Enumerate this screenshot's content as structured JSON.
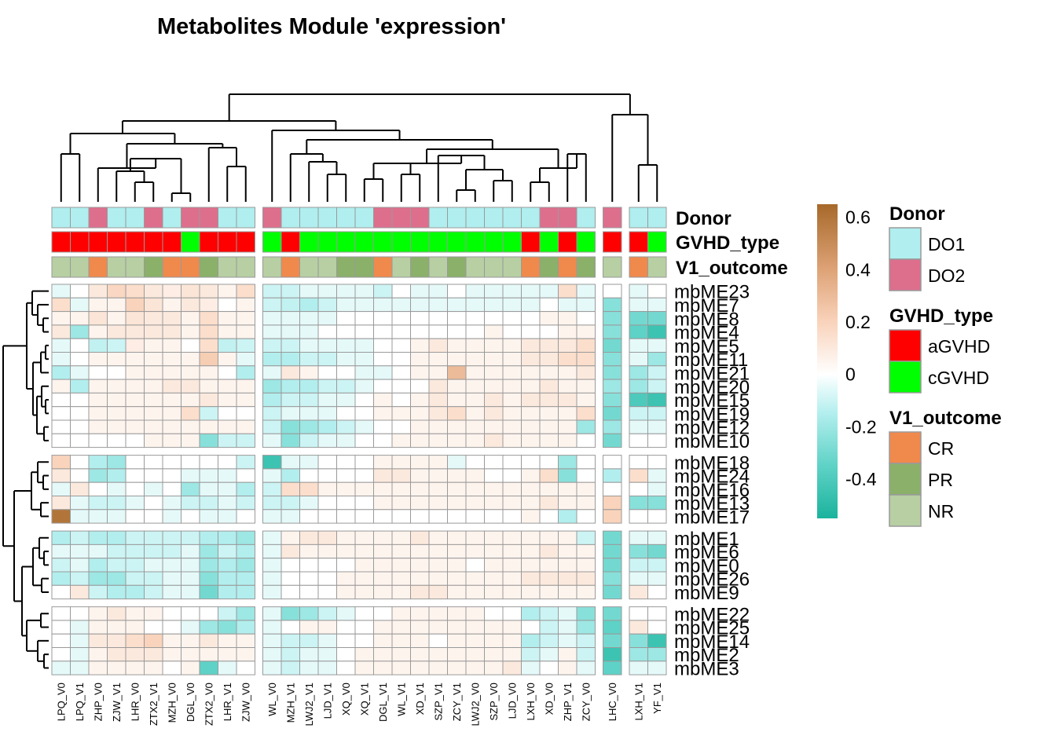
{
  "chart_data": {
    "type": "heatmap",
    "title": "Metabolites Module 'expression'",
    "columns": [
      "LPQ_V0",
      "LPQ_V1",
      "ZHP_V0",
      "ZJW_V1",
      "LHR_V0",
      "ZTX2_V1",
      "MZH_V0",
      "DGL_V0",
      "ZTX2_V0",
      "LHR_V1",
      "ZJW_V0",
      "WL_V0",
      "MZH_V1",
      "LWJ2_V1",
      "LJD_V1",
      "XQ_V0",
      "XQ_V1",
      "DGL_V1",
      "WL_V1",
      "XD_V1",
      "SZP_V1",
      "ZCY_V1",
      "LWJ2_V0",
      "SZP_V0",
      "LJD_V0",
      "LXH_V0",
      "XD_V0",
      "ZHP_V1",
      "ZCY_V0",
      "LHC_V0",
      "LXH_V1",
      "YF_V1"
    ],
    "column_groups": [
      11,
      18,
      1,
      2
    ],
    "rows": [
      "mbME23",
      "mbME7",
      "mbME8",
      "mbME4",
      "mbME5",
      "mbME11",
      "mbME21",
      "mbME20",
      "mbME15",
      "mbME19",
      "mbME12",
      "mbME10",
      "mbME18",
      "mbME24",
      "mbME16",
      "mbME13",
      "mbME17",
      "mbME1",
      "mbME6",
      "mbME0",
      "mbME26",
      "mbME9",
      "mbME22",
      "mbME25",
      "mbME14",
      "mbME2",
      "mbME3"
    ],
    "row_groups": [
      12,
      5,
      5,
      5
    ],
    "annotations": {
      "Donor": [
        "DO1",
        "DO1",
        "DO2",
        "DO1",
        "DO1",
        "DO2",
        "DO1",
        "DO2",
        "DO2",
        "DO1",
        "DO1",
        "DO2",
        "DO1",
        "DO1",
        "DO1",
        "DO1",
        "DO1",
        "DO2",
        "DO2",
        "DO2",
        "DO1",
        "DO1",
        "DO1",
        "DO1",
        "DO1",
        "DO1",
        "DO2",
        "DO2",
        "DO1",
        "DO2",
        "DO1",
        "DO1"
      ],
      "GVHD_type": [
        "aGVHD",
        "aGVHD",
        "aGVHD",
        "aGVHD",
        "aGVHD",
        "aGVHD",
        "aGVHD",
        "cGVHD",
        "aGVHD",
        "aGVHD",
        "aGVHD",
        "cGVHD",
        "aGVHD",
        "cGVHD",
        "cGVHD",
        "cGVHD",
        "cGVHD",
        "cGVHD",
        "cGVHD",
        "cGVHD",
        "cGVHD",
        "cGVHD",
        "cGVHD",
        "cGVHD",
        "cGVHD",
        "aGVHD",
        "cGVHD",
        "aGVHD",
        "cGVHD",
        "aGVHD",
        "aGVHD",
        "cGVHD"
      ],
      "V1_outcome": [
        "NR",
        "NR",
        "CR",
        "NR",
        "NR",
        "PR",
        "CR",
        "CR",
        "PR",
        "NR",
        "NR",
        "NR",
        "CR",
        "NR",
        "NR",
        "PR",
        "PR",
        "CR",
        "NR",
        "PR",
        "NR",
        "PR",
        "NR",
        "NR",
        "NR",
        "CR",
        "PR",
        "CR",
        "PR",
        "NR",
        "CR",
        "NR"
      ]
    },
    "values": [
      [
        -0.05,
        0.0,
        0.1,
        0.18,
        0.15,
        0.1,
        0.08,
        0.12,
        0.1,
        0.05,
        0.15,
        -0.1,
        -0.1,
        -0.05,
        -0.05,
        -0.05,
        -0.05,
        -0.1,
        0.0,
        -0.05,
        -0.05,
        0.0,
        -0.05,
        -0.05,
        -0.05,
        -0.05,
        -0.05,
        0.15,
        -0.05,
        0.0,
        -0.05,
        0.0
      ],
      [
        0.15,
        -0.05,
        0.05,
        0.05,
        0.2,
        0.12,
        0.05,
        0.1,
        0.08,
        0.0,
        0.05,
        -0.1,
        -0.12,
        -0.15,
        -0.1,
        -0.05,
        -0.05,
        -0.05,
        -0.05,
        -0.05,
        -0.05,
        -0.05,
        -0.05,
        -0.05,
        -0.05,
        -0.05,
        0.0,
        -0.05,
        -0.05,
        -0.25,
        -0.05,
        -0.05
      ],
      [
        0.05,
        0.05,
        0.12,
        0.05,
        0.12,
        0.1,
        0.1,
        0.05,
        0.15,
        0.05,
        0.05,
        -0.05,
        -0.05,
        -0.05,
        -0.05,
        0.0,
        0.0,
        0.0,
        0.0,
        0.0,
        0.0,
        0.0,
        0.0,
        0.0,
        0.0,
        0.0,
        0.05,
        0.05,
        0.0,
        -0.25,
        -0.3,
        -0.3
      ],
      [
        0.1,
        -0.2,
        0.05,
        0.1,
        0.1,
        0.1,
        0.1,
        0.05,
        0.15,
        0.05,
        0.05,
        -0.05,
        -0.05,
        -0.05,
        0.0,
        0.0,
        0.0,
        0.0,
        0.0,
        0.0,
        0.0,
        0.0,
        0.0,
        0.05,
        0.0,
        0.0,
        0.0,
        0.05,
        0.05,
        -0.25,
        -0.35,
        -0.45
      ],
      [
        -0.05,
        0.0,
        -0.12,
        -0.1,
        0.08,
        0.05,
        0.05,
        0.0,
        0.15,
        -0.12,
        -0.1,
        -0.1,
        -0.1,
        -0.05,
        -0.05,
        -0.05,
        -0.05,
        0.0,
        0.0,
        0.05,
        0.1,
        0.05,
        0.05,
        0.05,
        0.05,
        0.1,
        0.1,
        0.1,
        0.15,
        -0.3,
        -0.05,
        -0.05
      ],
      [
        -0.05,
        0.0,
        0.05,
        0.05,
        0.05,
        0.05,
        0.05,
        0.05,
        0.22,
        0.05,
        -0.05,
        -0.15,
        -0.15,
        -0.1,
        -0.1,
        -0.05,
        -0.05,
        0.0,
        0.0,
        0.05,
        0.05,
        0.05,
        0.05,
        0.05,
        0.05,
        0.1,
        0.1,
        0.15,
        0.15,
        -0.25,
        -0.05,
        -0.2
      ],
      [
        -0.15,
        -0.05,
        0.0,
        0.0,
        0.05,
        0.05,
        0.05,
        0.05,
        0.05,
        0.0,
        -0.15,
        -0.05,
        0.1,
        0.05,
        0.0,
        0.0,
        -0.05,
        -0.05,
        0.0,
        0.05,
        0.05,
        0.3,
        0.05,
        0.05,
        0.05,
        0.05,
        0.05,
        0.05,
        0.1,
        -0.25,
        -0.2,
        -0.1
      ],
      [
        0.05,
        -0.15,
        0.05,
        0.05,
        0.05,
        0.05,
        0.1,
        0.1,
        0.05,
        0.05,
        0.05,
        -0.2,
        -0.15,
        -0.15,
        -0.1,
        -0.1,
        -0.05,
        0.0,
        0.0,
        0.0,
        0.1,
        0.05,
        0.05,
        0.05,
        0.05,
        0.05,
        0.1,
        0.05,
        0.05,
        -0.2,
        -0.2,
        -0.1
      ],
      [
        0.0,
        0.0,
        0.05,
        0.05,
        0.05,
        0.05,
        0.05,
        0.05,
        0.1,
        0.05,
        0.05,
        -0.15,
        -0.1,
        -0.1,
        -0.05,
        -0.05,
        0.0,
        0.05,
        0.0,
        0.05,
        0.1,
        0.05,
        0.05,
        0.1,
        0.05,
        0.1,
        0.1,
        0.1,
        0.05,
        -0.25,
        -0.4,
        -0.45
      ],
      [
        0.0,
        0.0,
        0.05,
        0.05,
        0.05,
        0.05,
        0.05,
        0.15,
        -0.1,
        0.0,
        0.0,
        -0.1,
        -0.05,
        -0.05,
        -0.05,
        0.0,
        0.0,
        0.05,
        0.05,
        0.05,
        0.1,
        0.15,
        0.05,
        0.1,
        0.05,
        0.05,
        0.05,
        0.05,
        0.15,
        -0.3,
        -0.1,
        -0.1
      ],
      [
        0.0,
        0.0,
        0.05,
        0.05,
        0.05,
        0.05,
        0.05,
        0.05,
        0.05,
        0.05,
        0.05,
        -0.1,
        -0.25,
        -0.2,
        -0.15,
        -0.1,
        -0.05,
        0.0,
        0.0,
        0.05,
        0.05,
        0.05,
        0.05,
        0.05,
        0.05,
        0.05,
        0.05,
        0.05,
        -0.2,
        -0.2,
        -0.05,
        -0.05
      ],
      [
        0.0,
        0.0,
        0.0,
        0.0,
        0.0,
        0.05,
        0.05,
        0.05,
        -0.25,
        -0.1,
        -0.1,
        -0.05,
        -0.25,
        -0.1,
        -0.05,
        -0.05,
        0.0,
        0.0,
        0.05,
        0.05,
        0.05,
        0.05,
        0.05,
        0.1,
        0.05,
        0.05,
        0.05,
        0.05,
        0.0,
        -0.3,
        0.0,
        0.0
      ],
      [
        0.2,
        0.0,
        -0.15,
        -0.2,
        0.0,
        0.0,
        0.0,
        0.0,
        0.0,
        0.0,
        -0.1,
        -0.45,
        -0.05,
        -0.05,
        0.0,
        0.0,
        0.0,
        0.05,
        0.05,
        0.05,
        0.05,
        -0.05,
        0.0,
        0.0,
        0.0,
        0.0,
        0.0,
        -0.2,
        0.0,
        0.0,
        0.0,
        0.0
      ],
      [
        0.1,
        0.0,
        -0.2,
        -0.15,
        0.0,
        0.0,
        0.0,
        -0.05,
        -0.05,
        -0.05,
        0.0,
        -0.05,
        -0.15,
        0.0,
        0.0,
        0.0,
        0.0,
        0.1,
        0.1,
        0.05,
        0.05,
        0.05,
        0.05,
        0.0,
        0.0,
        0.05,
        0.15,
        -0.25,
        0.0,
        -0.15,
        0.15,
        -0.05
      ],
      [
        -0.05,
        0.1,
        0.0,
        -0.05,
        0.0,
        -0.05,
        0.0,
        -0.2,
        -0.05,
        -0.05,
        -0.15,
        -0.1,
        0.15,
        0.15,
        0.05,
        0.05,
        0.05,
        0.05,
        0.05,
        0.05,
        0.05,
        0.05,
        0.05,
        0.05,
        0.05,
        0.05,
        0.05,
        0.05,
        0.05,
        0.0,
        0.0,
        -0.05
      ],
      [
        0.1,
        -0.05,
        -0.1,
        -0.1,
        -0.05,
        0.0,
        -0.05,
        -0.1,
        -0.1,
        -0.05,
        -0.1,
        -0.1,
        -0.1,
        -0.05,
        0.0,
        0.0,
        0.0,
        0.05,
        0.05,
        0.05,
        0.05,
        0.05,
        0.05,
        0.05,
        0.05,
        0.05,
        0.1,
        0.05,
        0.05,
        0.2,
        -0.25,
        -0.25
      ],
      [
        0.6,
        -0.05,
        -0.05,
        -0.05,
        0.0,
        0.0,
        -0.05,
        0.0,
        -0.05,
        -0.05,
        0.0,
        -0.05,
        -0.05,
        0.0,
        0.0,
        0.0,
        0.0,
        0.0,
        0.0,
        0.0,
        0.0,
        0.0,
        0.0,
        0.0,
        0.0,
        0.05,
        0.0,
        -0.15,
        0.0,
        0.2,
        0.0,
        0.0
      ],
      [
        -0.15,
        -0.1,
        -0.15,
        -0.15,
        -0.1,
        -0.1,
        -0.1,
        -0.1,
        -0.15,
        -0.15,
        -0.2,
        -0.05,
        0.05,
        0.1,
        0.1,
        0.05,
        0.05,
        0.05,
        0.05,
        0.1,
        0.05,
        0.05,
        0.05,
        0.05,
        0.05,
        0.05,
        0.05,
        0.05,
        -0.1,
        -0.3,
        -0.05,
        -0.05
      ],
      [
        -0.05,
        -0.05,
        -0.05,
        -0.1,
        -0.1,
        -0.1,
        -0.1,
        -0.05,
        -0.2,
        -0.1,
        -0.15,
        -0.05,
        0.1,
        0.05,
        0.05,
        0.05,
        0.05,
        0.05,
        0.05,
        0.05,
        0.05,
        0.05,
        0.05,
        0.05,
        0.05,
        0.05,
        0.1,
        0.05,
        0.05,
        -0.3,
        -0.25,
        -0.3
      ],
      [
        -0.1,
        -0.05,
        -0.15,
        -0.1,
        -0.1,
        -0.05,
        -0.05,
        -0.05,
        -0.2,
        -0.15,
        -0.2,
        -0.05,
        0.0,
        0.0,
        0.0,
        0.0,
        0.05,
        0.05,
        0.05,
        0.05,
        0.05,
        0.05,
        0.0,
        0.05,
        0.05,
        0.05,
        0.05,
        0.05,
        0.05,
        -0.3,
        -0.1,
        -0.1
      ],
      [
        -0.15,
        -0.1,
        -0.2,
        -0.2,
        -0.1,
        -0.1,
        -0.05,
        -0.05,
        -0.25,
        -0.15,
        -0.15,
        -0.05,
        0.0,
        0.0,
        0.0,
        0.05,
        0.05,
        0.05,
        0.05,
        0.05,
        0.05,
        0.05,
        0.05,
        0.05,
        0.05,
        0.1,
        0.1,
        0.1,
        0.1,
        -0.25,
        -0.05,
        -0.05
      ],
      [
        0.0,
        0.1,
        -0.1,
        -0.15,
        -0.15,
        -0.1,
        -0.05,
        -0.05,
        -0.3,
        -0.15,
        -0.15,
        -0.05,
        0.0,
        0.0,
        0.0,
        0.05,
        0.05,
        0.05,
        0.05,
        0.1,
        0.1,
        0.05,
        0.05,
        0.05,
        0.05,
        0.05,
        0.05,
        0.05,
        0.05,
        -0.3,
        0.1,
        0.0
      ],
      [
        0.0,
        0.0,
        0.05,
        0.1,
        0.05,
        0.05,
        0.0,
        0.0,
        0.0,
        -0.1,
        -0.2,
        -0.05,
        -0.25,
        -0.2,
        -0.1,
        -0.05,
        0.0,
        0.0,
        0.05,
        0.05,
        0.05,
        0.05,
        0.05,
        0.0,
        0.0,
        -0.15,
        -0.1,
        -0.05,
        -0.25,
        -0.3,
        0.0,
        0.0
      ],
      [
        0.0,
        -0.05,
        0.05,
        0.05,
        0.05,
        0.0,
        0.0,
        -0.05,
        -0.2,
        -0.25,
        -0.15,
        -0.05,
        0.0,
        0.05,
        0.05,
        0.0,
        0.0,
        0.05,
        0.05,
        0.05,
        0.05,
        0.05,
        0.05,
        0.05,
        0.05,
        0.0,
        -0.1,
        -0.05,
        -0.2,
        -0.35,
        0.1,
        0.0
      ],
      [
        0.0,
        -0.05,
        0.1,
        0.1,
        0.15,
        0.2,
        0.05,
        0.05,
        0.1,
        0.05,
        0.05,
        -0.05,
        -0.1,
        -0.1,
        -0.05,
        0.0,
        0.0,
        0.05,
        0.05,
        0.05,
        0.0,
        0.05,
        0.05,
        0.05,
        0.05,
        -0.15,
        -0.1,
        -0.05,
        -0.1,
        -0.3,
        -0.25,
        -0.45
      ],
      [
        0.0,
        -0.05,
        0.05,
        0.1,
        0.1,
        0.1,
        0.05,
        0.05,
        0.05,
        0.05,
        0.05,
        -0.05,
        -0.1,
        -0.05,
        -0.05,
        0.0,
        0.05,
        0.05,
        0.05,
        0.05,
        0.05,
        0.05,
        0.05,
        0.05,
        0.05,
        -0.1,
        -0.05,
        0.05,
        -0.1,
        -0.45,
        -0.2,
        -0.2
      ],
      [
        -0.05,
        -0.05,
        0.05,
        0.05,
        0.05,
        0.05,
        0.0,
        0.05,
        -0.35,
        -0.05,
        0.0,
        -0.05,
        -0.1,
        -0.05,
        -0.05,
        0.0,
        0.05,
        0.05,
        0.05,
        0.05,
        0.05,
        0.05,
        0.05,
        0.05,
        0.1,
        -0.05,
        0.0,
        0.05,
        -0.05,
        -0.35,
        -0.05,
        -0.05
      ]
    ],
    "color_scale": {
      "min": -0.55,
      "max": 0.65,
      "ticks": [
        0.6,
        0.4,
        0.2,
        0,
        -0.2,
        -0.4
      ],
      "tick_labels": [
        "0.6",
        "0.4",
        "0.2",
        "0",
        "-0.2",
        "-0.4"
      ],
      "stops": [
        {
          "value": -0.55,
          "color": "#1bb39d"
        },
        {
          "value": -0.35,
          "color": "#5ed2c6"
        },
        {
          "value": -0.15,
          "color": "#b2eeee"
        },
        {
          "value": 0,
          "color": "#ffffff"
        },
        {
          "value": 0.2,
          "color": "#f9d3bb"
        },
        {
          "value": 0.4,
          "color": "#dea377"
        },
        {
          "value": 0.65,
          "color": "#a7692a"
        }
      ]
    },
    "legends": [
      {
        "title": "Donor",
        "items": [
          {
            "label": "DO1",
            "color": "#b0eeef"
          },
          {
            "label": "DO2",
            "color": "#dd6f8d"
          }
        ]
      },
      {
        "title": "GVHD_type",
        "items": [
          {
            "label": "aGVHD",
            "color": "#ff0000"
          },
          {
            "label": "cGVHD",
            "color": "#00ff00"
          }
        ]
      },
      {
        "title": "V1_outcome",
        "items": [
          {
            "label": "CR",
            "color": "#f0894c"
          },
          {
            "label": "PR",
            "color": "#8bb06a"
          },
          {
            "label": "NR",
            "color": "#b7cfa2"
          }
        ]
      }
    ]
  }
}
